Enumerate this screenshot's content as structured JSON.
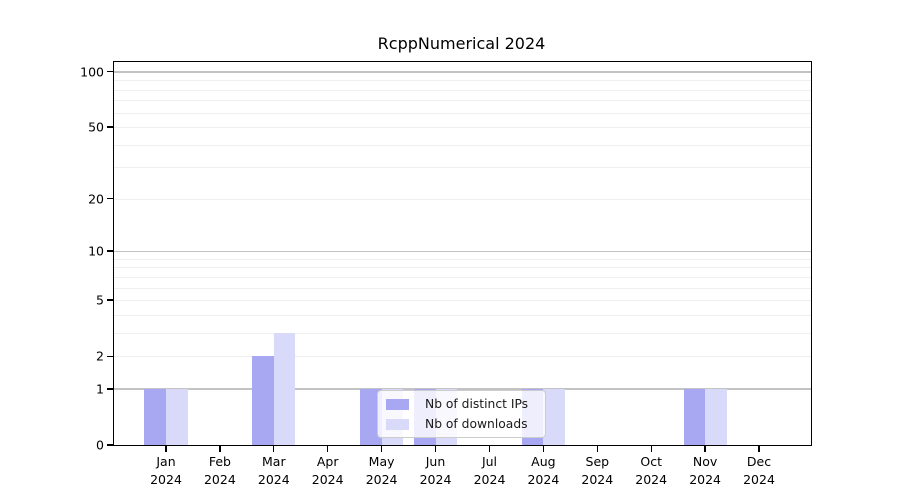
{
  "figure": {
    "background": "#ffffff"
  },
  "chart_data": {
    "type": "bar",
    "title": "RcppNumerical 2024",
    "categories": [
      "Jan 2024",
      "Feb 2024",
      "Mar 2024",
      "Apr 2024",
      "May 2024",
      "Jun 2024",
      "Jul 2024",
      "Aug 2024",
      "Sep 2024",
      "Oct 2024",
      "Nov 2024",
      "Dec 2024"
    ],
    "series": [
      {
        "name": "Nb of distinct IPs",
        "color": "#a8a8f2",
        "values": [
          1,
          0,
          2,
          0,
          1,
          1,
          0,
          1,
          0,
          0,
          1,
          0
        ]
      },
      {
        "name": "Nb of downloads",
        "color": "#d9d9f9",
        "values": [
          1,
          0,
          3,
          0,
          1,
          1,
          0,
          1,
          0,
          0,
          1,
          0
        ]
      }
    ],
    "xlabel": "",
    "ylabel": "",
    "yscale": "log1p",
    "ylim": [
      0,
      113
    ],
    "ytick_values": [
      0,
      1,
      2,
      5,
      10,
      20,
      50,
      100
    ],
    "major_grid_values": [
      1,
      10,
      100
    ],
    "minor_grid_values": [
      2,
      3,
      4,
      5,
      6,
      7,
      8,
      9,
      20,
      30,
      40,
      50,
      60,
      70,
      80,
      90
    ],
    "grid": "on",
    "legend_position": "lower-center-inside",
    "colors": {
      "major_grid": "#c3c3c3",
      "minor_grid": "#efefef",
      "axis": "#000000",
      "text": "#000000"
    }
  }
}
